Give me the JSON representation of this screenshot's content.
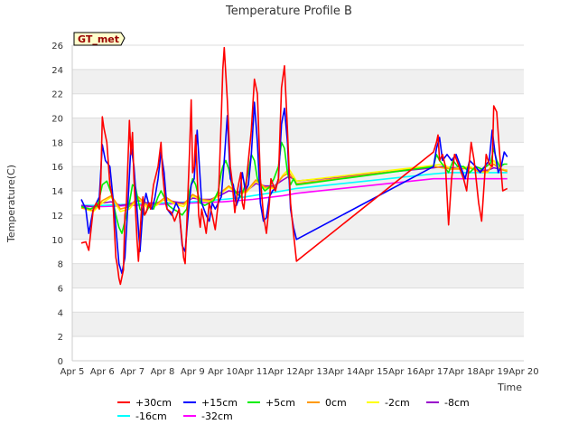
{
  "chart_data": {
    "type": "line",
    "title": "Temperature Profile B",
    "xlabel": "Time",
    "ylabel": "Temperature(C)",
    "badge": "GT_met",
    "ylim": [
      0,
      26
    ],
    "yticks": [
      0,
      2,
      4,
      6,
      8,
      10,
      12,
      14,
      16,
      18,
      20,
      22,
      24,
      26
    ],
    "xlim": [
      0,
      15
    ],
    "xticks": [
      "Apr 5",
      "Apr 6",
      "Apr 7",
      "Apr 8",
      "Apr 9",
      "Apr 10",
      "Apr 11",
      "Apr 12",
      "Apr 13",
      "Apr 14",
      "Apr 15",
      "Apr 16",
      "Apr 17",
      "Apr 18",
      "Apr 19",
      "Apr 20"
    ],
    "x_unit_note": "days since Apr 5 00:00",
    "series": [
      {
        "name": "+30cm",
        "color": "#ff0000",
        "x": [
          0.3,
          0.45,
          0.55,
          0.7,
          0.8,
          0.9,
          0.95,
          1.0,
          1.05,
          1.15,
          1.25,
          1.35,
          1.45,
          1.5,
          1.55,
          1.6,
          1.7,
          1.75,
          1.8,
          1.9,
          1.95,
          2.0,
          2.05,
          2.15,
          2.2,
          2.3,
          2.35,
          2.4,
          2.45,
          2.55,
          2.6,
          2.7,
          2.75,
          2.85,
          2.95,
          3.0,
          3.1,
          3.15,
          3.3,
          3.4,
          3.55,
          3.7,
          3.75,
          3.8,
          3.9,
          3.95,
          4.0,
          4.05,
          4.1,
          4.2,
          4.25,
          4.3,
          4.4,
          4.45,
          4.55,
          4.65,
          4.75,
          4.85,
          4.95,
          5.0,
          5.05,
          5.15,
          5.25,
          5.3,
          5.4,
          5.5,
          5.6,
          5.65,
          5.7,
          5.85,
          5.95,
          6.05,
          6.15,
          6.25,
          6.35,
          6.45,
          6.55,
          6.6,
          6.7,
          6.75,
          6.85,
          6.95,
          7.05,
          7.15,
          7.25,
          7.35,
          7.45,
          12.0,
          12.1,
          12.15,
          12.2,
          12.3,
          12.4,
          12.5,
          12.6,
          12.7,
          12.85,
          13.0,
          13.1,
          13.25,
          13.35,
          13.5,
          13.6,
          13.75,
          13.85,
          13.95,
          14.0,
          14.1,
          14.2,
          14.3
        ],
        "values": [
          9.7,
          9.8,
          9.1,
          12.5,
          13.0,
          12.5,
          15.0,
          20.1,
          19.2,
          18.0,
          14.5,
          13.2,
          8.5,
          7.8,
          6.8,
          6.3,
          7.5,
          12.0,
          13.0,
          19.8,
          17.0,
          18.8,
          15.0,
          10.0,
          8.2,
          12.5,
          13.5,
          12.0,
          12.2,
          13.0,
          12.5,
          14.5,
          15.0,
          16.0,
          18.0,
          15.5,
          13.0,
          12.5,
          12.2,
          11.5,
          12.5,
          8.5,
          8.0,
          11.0,
          17.5,
          21.5,
          15.5,
          16.0,
          18.6,
          12.0,
          11.0,
          12.5,
          11.2,
          10.5,
          13.0,
          12.0,
          10.8,
          13.0,
          20.0,
          24.0,
          25.8,
          21.5,
          16.0,
          15.0,
          12.2,
          14.2,
          15.5,
          13.0,
          12.5,
          16.5,
          19.0,
          23.2,
          22.0,
          15.0,
          12.0,
          10.5,
          13.0,
          15.0,
          14.3,
          14.0,
          15.0,
          22.5,
          24.3,
          19.0,
          13.0,
          10.5,
          8.2,
          17.2,
          18.0,
          18.6,
          16.5,
          17.0,
          16.0,
          11.2,
          15.0,
          17.0,
          16.0,
          15.0,
          14.0,
          18.0,
          16.5,
          13.0,
          11.5,
          17.0,
          16.2,
          16.0,
          21.0,
          20.5,
          17.0,
          14.0
        ],
        "end_x": 14.45,
        "end_y": 14.2
      },
      {
        "name": "+15cm",
        "color": "#0000ff",
        "x": [
          0.3,
          0.45,
          0.55,
          0.7,
          0.8,
          0.9,
          1.0,
          1.1,
          1.25,
          1.35,
          1.45,
          1.55,
          1.65,
          1.75,
          1.85,
          1.95,
          2.05,
          2.15,
          2.25,
          2.35,
          2.45,
          2.55,
          2.65,
          2.75,
          2.85,
          2.95,
          3.05,
          3.15,
          3.3,
          3.45,
          3.55,
          3.65,
          3.75,
          3.85,
          3.95,
          4.05,
          4.15,
          4.3,
          4.45,
          4.55,
          4.65,
          4.75,
          4.85,
          4.95,
          5.05,
          5.15,
          5.25,
          5.35,
          5.45,
          5.55,
          5.65,
          5.75,
          5.85,
          5.95,
          6.05,
          6.15,
          6.25,
          6.35,
          6.45,
          6.55,
          6.65,
          6.75,
          6.85,
          6.95,
          7.05,
          7.15,
          7.25,
          7.35,
          7.45,
          12.0,
          12.1,
          12.2,
          12.3,
          12.45,
          12.6,
          12.75,
          12.9,
          13.05,
          13.2,
          13.4,
          13.55,
          13.7,
          13.85,
          13.95,
          14.05,
          14.15,
          14.25,
          14.35
        ],
        "values": [
          13.3,
          12.5,
          10.5,
          12.5,
          13.0,
          13.5,
          17.8,
          16.5,
          16.0,
          13.5,
          11.0,
          8.0,
          7.2,
          8.5,
          13.0,
          17.8,
          16.0,
          12.5,
          9.0,
          12.5,
          13.8,
          12.8,
          12.5,
          13.5,
          15.0,
          17.2,
          15.5,
          12.5,
          12.0,
          13.0,
          12.5,
          9.5,
          9.0,
          12.0,
          14.5,
          15.0,
          19.0,
          13.0,
          12.0,
          11.5,
          13.0,
          12.5,
          13.0,
          13.5,
          16.5,
          20.2,
          15.0,
          14.5,
          12.8,
          13.5,
          15.5,
          14.0,
          14.5,
          17.0,
          21.3,
          18.0,
          13.0,
          11.5,
          11.8,
          13.5,
          14.0,
          14.2,
          15.0,
          19.5,
          20.8,
          18.0,
          12.5,
          11.0,
          10.0,
          16.0,
          17.5,
          18.4,
          16.5,
          17.0,
          16.5,
          17.0,
          16.0,
          15.0,
          16.5,
          16.0,
          15.5,
          16.0,
          16.5,
          19.0,
          17.0,
          15.5,
          16.0,
          17.2
        ],
        "end_x": 14.45,
        "end_y": 16.8
      },
      {
        "name": "+5cm",
        "color": "#00ee00",
        "x": [
          0.3,
          0.6,
          0.85,
          1.0,
          1.15,
          1.3,
          1.45,
          1.55,
          1.65,
          1.75,
          1.9,
          2.0,
          2.1,
          2.25,
          2.4,
          2.55,
          2.7,
          2.85,
          2.95,
          3.05,
          3.2,
          3.35,
          3.5,
          3.65,
          3.8,
          3.9,
          4.0,
          4.1,
          4.25,
          4.4,
          4.55,
          4.7,
          4.85,
          4.95,
          5.0,
          5.1,
          5.2,
          5.3,
          5.45,
          5.6,
          5.75,
          5.85,
          5.95,
          6.05,
          6.15,
          6.25,
          6.4,
          6.55,
          6.7,
          6.85,
          6.95,
          7.05,
          7.15,
          7.25,
          7.35,
          7.45,
          12.0,
          12.1,
          12.2,
          12.35,
          12.5,
          12.65,
          12.8,
          13.0,
          13.2,
          13.4,
          13.6,
          13.75,
          13.9,
          14.0,
          14.1,
          14.2,
          14.35
        ],
        "values": [
          12.7,
          12.5,
          12.8,
          14.5,
          14.8,
          13.8,
          12.0,
          11.0,
          10.5,
          11.5,
          13.0,
          14.5,
          14.3,
          12.5,
          12.0,
          12.7,
          12.5,
          13.5,
          14.0,
          13.5,
          12.8,
          12.5,
          12.3,
          12.0,
          12.5,
          14.0,
          15.0,
          14.5,
          13.0,
          12.8,
          13.0,
          13.2,
          14.0,
          15.5,
          16.0,
          16.5,
          15.8,
          14.5,
          13.8,
          13.5,
          14.5,
          15.5,
          17.0,
          16.5,
          15.0,
          14.5,
          14.0,
          14.3,
          15.0,
          16.0,
          18.0,
          17.5,
          15.5,
          14.5,
          15.0,
          14.5,
          16.0,
          17.0,
          16.5,
          16.0,
          15.5,
          16.5,
          16.0,
          16.0,
          15.5,
          16.0,
          15.8,
          16.0,
          16.3,
          17.5,
          16.5,
          16.0,
          16.2
        ],
        "end_x": 14.45,
        "end_y": 16.2
      },
      {
        "name": "0cm",
        "color": "#ff9900",
        "x": [
          0.3,
          0.7,
          1.0,
          1.3,
          1.6,
          1.9,
          2.2,
          2.5,
          2.8,
          3.1,
          3.4,
          3.7,
          4.0,
          4.3,
          4.6,
          4.9,
          5.2,
          5.5,
          5.8,
          6.1,
          6.4,
          6.7,
          7.0,
          7.2,
          7.45,
          12.0,
          12.3,
          12.6,
          12.9,
          13.2,
          13.5,
          13.8,
          14.0,
          14.2,
          14.45
        ],
        "values": [
          12.6,
          12.4,
          13.2,
          13.6,
          12.5,
          12.7,
          13.5,
          12.8,
          12.9,
          13.5,
          13.0,
          12.9,
          13.7,
          13.3,
          13.2,
          13.8,
          14.4,
          13.8,
          14.0,
          14.9,
          14.3,
          14.3,
          15.2,
          15.5,
          14.6,
          16.0,
          15.9,
          15.8,
          15.8,
          15.9,
          15.6,
          15.6,
          16.2,
          15.8,
          15.6
        ],
        "end_x": 14.45,
        "end_y": 15.6
      },
      {
        "name": "-2cm",
        "color": "#ffff00",
        "x": [
          0.3,
          0.7,
          1.0,
          1.3,
          1.6,
          1.9,
          2.2,
          2.5,
          2.8,
          3.1,
          3.4,
          3.7,
          4.0,
          4.3,
          4.6,
          4.9,
          5.2,
          5.5,
          5.8,
          6.1,
          6.4,
          6.7,
          7.0,
          7.2,
          7.45,
          12.0,
          12.3,
          12.6,
          12.9,
          13.2,
          13.5,
          13.8,
          14.0,
          14.2,
          14.45
        ],
        "values": [
          12.6,
          12.3,
          13.0,
          13.5,
          12.3,
          12.5,
          13.4,
          12.6,
          12.8,
          13.4,
          12.9,
          12.7,
          13.6,
          13.2,
          13.1,
          13.7,
          14.3,
          13.7,
          13.9,
          14.8,
          14.2,
          14.2,
          15.3,
          15.8,
          14.8,
          16.1,
          16.2,
          15.8,
          15.9,
          16.0,
          15.6,
          15.5,
          16.5,
          15.8,
          15.7
        ],
        "end_x": 14.45,
        "end_y": 15.7
      },
      {
        "name": "-8cm",
        "color": "#9900cc",
        "x": [
          0.3,
          0.7,
          1.0,
          1.3,
          1.6,
          1.9,
          2.2,
          2.5,
          2.8,
          3.1,
          3.4,
          3.7,
          4.0,
          4.3,
          4.6,
          4.9,
          5.2,
          5.5,
          5.8,
          6.1,
          6.4,
          6.7,
          7.0,
          7.2,
          7.45,
          12.0,
          12.3,
          12.6,
          12.9,
          13.2,
          13.5,
          13.8,
          14.0,
          14.2,
          14.45
        ],
        "values": [
          12.8,
          12.7,
          13.0,
          13.1,
          12.8,
          12.9,
          13.2,
          13.0,
          13.0,
          13.3,
          13.1,
          13.0,
          13.4,
          13.3,
          13.3,
          13.6,
          14.0,
          13.9,
          14.0,
          14.6,
          14.4,
          14.4,
          14.9,
          15.2,
          14.8,
          15.9,
          16.0,
          15.9,
          15.9,
          15.9,
          15.7,
          15.7,
          15.9,
          15.8,
          15.7
        ],
        "end_x": 14.45,
        "end_y": 15.7
      },
      {
        "name": "-16cm",
        "color": "#00ffff",
        "x": [
          0.3,
          1.0,
          2.0,
          3.0,
          4.0,
          5.0,
          5.5,
          6.0,
          6.5,
          7.0,
          7.45,
          12.0,
          12.5,
          13.0,
          13.5,
          14.0,
          14.45
        ],
        "values": [
          12.8,
          12.8,
          12.9,
          13.0,
          13.1,
          13.3,
          13.4,
          13.6,
          13.8,
          14.0,
          14.2,
          15.4,
          15.5,
          15.5,
          15.5,
          15.5,
          15.5
        ],
        "end_x": 14.45,
        "end_y": 15.5
      },
      {
        "name": "-32cm",
        "color": "#ff00ff",
        "x": [
          0.3,
          1.0,
          2.0,
          3.0,
          4.0,
          5.0,
          6.0,
          7.0,
          7.45,
          12.0,
          12.5,
          13.0,
          13.5,
          14.0,
          14.45
        ],
        "values": [
          12.7,
          12.7,
          12.8,
          12.9,
          13.0,
          13.1,
          13.3,
          13.6,
          13.8,
          15.0,
          15.0,
          15.0,
          15.0,
          15.0,
          15.0
        ],
        "end_x": 14.45,
        "end_y": 15.0
      }
    ]
  }
}
